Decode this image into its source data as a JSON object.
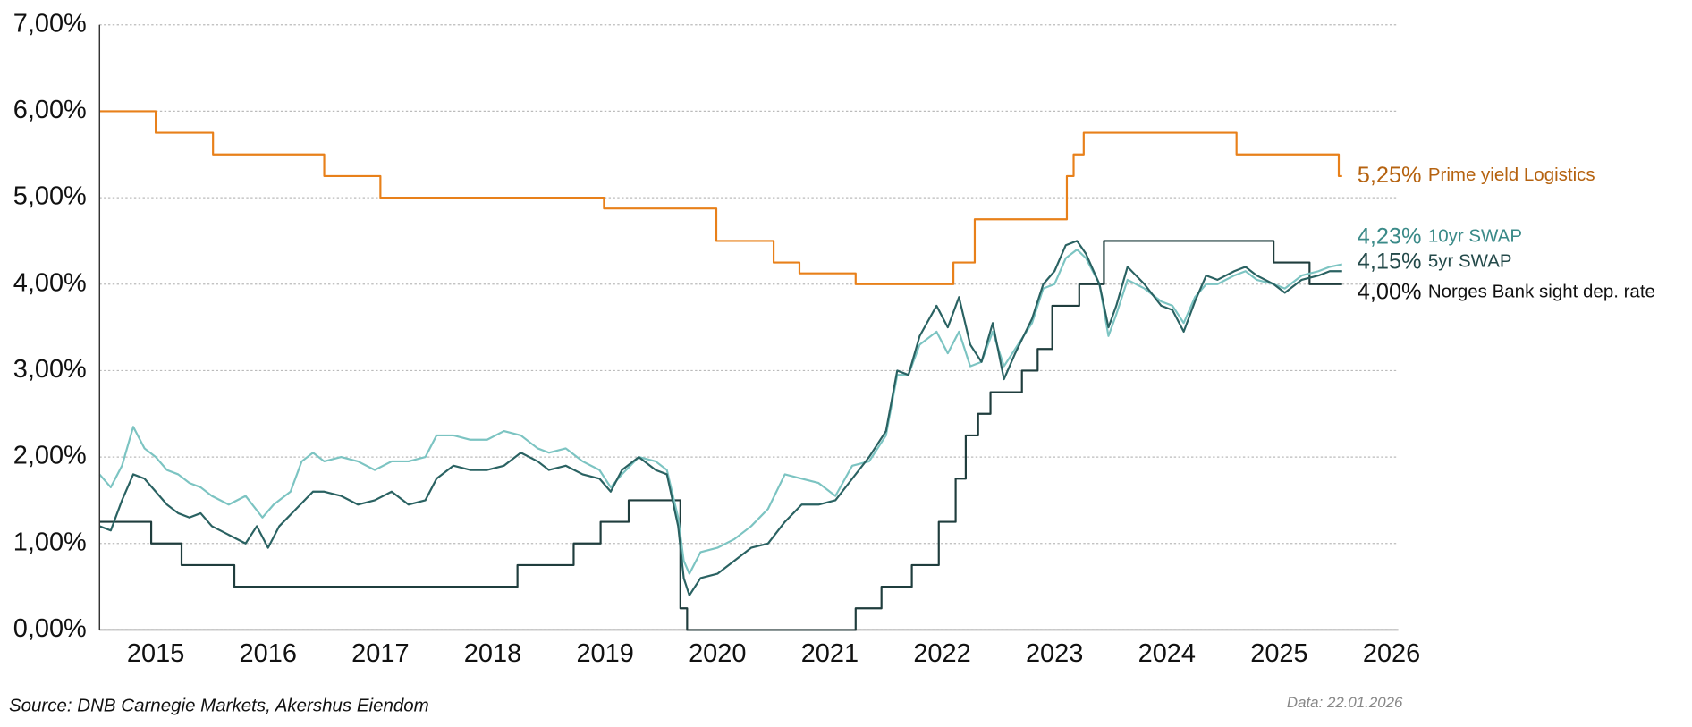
{
  "chart_data": {
    "type": "line",
    "source": "Source: DNB Carnegie Markets, Akershus Eiendom",
    "data_date": "Data: 22.01.2026",
    "xlim": [
      2015,
      2026.56
    ],
    "xticks": [
      {
        "value": 2015.5,
        "label": "2015"
      },
      {
        "value": 2016.5,
        "label": "2016"
      },
      {
        "value": 2017.5,
        "label": "2017"
      },
      {
        "value": 2018.5,
        "label": "2018"
      },
      {
        "value": 2019.5,
        "label": "2019"
      },
      {
        "value": 2020.5,
        "label": "2020"
      },
      {
        "value": 2021.5,
        "label": "2021"
      },
      {
        "value": 2022.5,
        "label": "2022"
      },
      {
        "value": 2023.5,
        "label": "2023"
      },
      {
        "value": 2024.5,
        "label": "2024"
      },
      {
        "value": 2025.5,
        "label": "2025"
      },
      {
        "value": 2026.5,
        "label": "2026"
      }
    ],
    "ylim": [
      0,
      7
    ],
    "yticks": [
      {
        "value": 0,
        "label": "0,00%"
      },
      {
        "value": 1,
        "label": "1,00%"
      },
      {
        "value": 2,
        "label": "2,00%"
      },
      {
        "value": 3,
        "label": "3,00%"
      },
      {
        "value": 4,
        "label": "4,00%"
      },
      {
        "value": 5,
        "label": "5,00%"
      },
      {
        "value": 6,
        "label": "6,00%"
      },
      {
        "value": 7,
        "label": "7,00%"
      }
    ],
    "grid": true,
    "series": [
      {
        "name": "Prime yield Logistics",
        "end_label": "5,25%",
        "color": "#e8801a",
        "label_color": "#b5620f",
        "x": [
          2015,
          2015.5,
          2015.5,
          2016.01,
          2016.01,
          2017.0,
          2017.0,
          2017.5,
          2017.5,
          2019.49,
          2019.49,
          2020.49,
          2020.49,
          2021.0,
          2021.0,
          2021.23,
          2021.23,
          2021.73,
          2021.73,
          2022.6,
          2022.6,
          2022.79,
          2022.79,
          2023.61,
          2023.61,
          2023.67,
          2023.67,
          2023.76,
          2023.76,
          2025.12,
          2025.12,
          2026.03,
          2026.03,
          2026.06
        ],
        "values": [
          6.0,
          6.0,
          5.75,
          5.75,
          5.5,
          5.5,
          5.25,
          5.25,
          5.0,
          5.0,
          4.875,
          4.875,
          4.5,
          4.5,
          4.25,
          4.25,
          4.125,
          4.125,
          4.0,
          4.0,
          4.25,
          4.25,
          4.75,
          4.75,
          5.25,
          5.25,
          5.5,
          5.5,
          5.75,
          5.75,
          5.5,
          5.5,
          5.25,
          5.25
        ]
      },
      {
        "name": "Norges Bank sight dep. rate",
        "end_label": "4,00%",
        "color": "#1f3d3d",
        "label_color": "#111111",
        "x": [
          2015,
          2015.46,
          2015.46,
          2015.73,
          2015.73,
          2016.2,
          2016.2,
          2018.72,
          2018.72,
          2019.22,
          2019.22,
          2019.46,
          2019.46,
          2019.71,
          2019.71,
          2020.17,
          2020.17,
          2020.23,
          2020.23,
          2021.73,
          2021.73,
          2021.96,
          2021.96,
          2022.23,
          2022.23,
          2022.47,
          2022.47,
          2022.62,
          2022.62,
          2022.71,
          2022.71,
          2022.82,
          2022.82,
          2022.93,
          2022.93,
          2023.21,
          2023.21,
          2023.35,
          2023.35,
          2023.48,
          2023.48,
          2023.72,
          2023.72,
          2023.94,
          2023.94,
          2025.45,
          2025.45,
          2025.77,
          2025.77,
          2026.06
        ],
        "values": [
          1.25,
          1.25,
          1.0,
          1.0,
          0.75,
          0.75,
          0.5,
          0.5,
          0.75,
          0.75,
          1.0,
          1.0,
          1.25,
          1.25,
          1.5,
          1.5,
          0.25,
          0.25,
          0,
          0,
          0.25,
          0.25,
          0.5,
          0.5,
          0.75,
          0.75,
          1.25,
          1.25,
          1.75,
          1.75,
          2.25,
          2.25,
          2.5,
          2.5,
          2.75,
          2.75,
          3.0,
          3.0,
          3.25,
          3.25,
          3.75,
          3.75,
          4.0,
          4.0,
          4.5,
          4.5,
          4.25,
          4.25,
          4.0,
          4.0
        ]
      },
      {
        "name": "10yr SWAP",
        "end_label": "4,23%",
        "color": "#7cc4c2",
        "label_color": "#3a8a88",
        "x": [
          2015.0,
          2015.1,
          2015.2,
          2015.3,
          2015.4,
          2015.5,
          2015.6,
          2015.7,
          2015.8,
          2015.9,
          2016.0,
          2016.15,
          2016.3,
          2016.45,
          2016.55,
          2016.7,
          2016.8,
          2016.9,
          2017.0,
          2017.15,
          2017.3,
          2017.45,
          2017.6,
          2017.75,
          2017.9,
          2018.0,
          2018.15,
          2018.3,
          2018.45,
          2018.6,
          2018.75,
          2018.9,
          2019.0,
          2019.15,
          2019.3,
          2019.45,
          2019.55,
          2019.65,
          2019.8,
          2019.95,
          2020.05,
          2020.15,
          2020.2,
          2020.25,
          2020.35,
          2020.5,
          2020.65,
          2020.8,
          2020.95,
          2021.1,
          2021.25,
          2021.4,
          2021.55,
          2021.7,
          2021.85,
          2022.0,
          2022.1,
          2022.2,
          2022.3,
          2022.45,
          2022.55,
          2022.65,
          2022.75,
          2022.85,
          2022.95,
          2023.05,
          2023.15,
          2023.3,
          2023.4,
          2023.5,
          2023.6,
          2023.7,
          2023.78,
          2023.9,
          2023.98,
          2024.05,
          2024.15,
          2024.3,
          2024.45,
          2024.55,
          2024.65,
          2024.75,
          2024.85,
          2024.95,
          2025.1,
          2025.2,
          2025.3,
          2025.45,
          2025.55,
          2025.7,
          2025.85,
          2025.95,
          2026.06
        ],
        "values": [
          1.8,
          1.65,
          1.9,
          2.35,
          2.1,
          2.0,
          1.85,
          1.8,
          1.7,
          1.65,
          1.55,
          1.45,
          1.55,
          1.3,
          1.45,
          1.6,
          1.95,
          2.05,
          1.95,
          2.0,
          1.95,
          1.85,
          1.95,
          1.95,
          2.0,
          2.25,
          2.25,
          2.2,
          2.2,
          2.3,
          2.25,
          2.1,
          2.05,
          2.1,
          1.95,
          1.85,
          1.65,
          1.8,
          2.0,
          1.95,
          1.85,
          1.3,
          0.8,
          0.65,
          0.9,
          0.95,
          1.05,
          1.2,
          1.4,
          1.8,
          1.75,
          1.7,
          1.55,
          1.9,
          1.95,
          2.25,
          2.95,
          2.95,
          3.3,
          3.45,
          3.2,
          3.45,
          3.05,
          3.1,
          3.45,
          3.05,
          3.25,
          3.55,
          3.95,
          4.0,
          4.3,
          4.4,
          4.3,
          4.0,
          3.4,
          3.65,
          4.05,
          3.95,
          3.8,
          3.75,
          3.55,
          3.85,
          4.0,
          4.0,
          4.1,
          4.15,
          4.05,
          4.0,
          3.95,
          4.1,
          4.15,
          4.2,
          4.23
        ]
      },
      {
        "name": "5yr SWAP",
        "end_label": "4,15%",
        "color": "#2a6262",
        "label_color": "#244a4a",
        "x": [
          2015.0,
          2015.1,
          2015.2,
          2015.3,
          2015.4,
          2015.5,
          2015.6,
          2015.7,
          2015.8,
          2015.9,
          2016.0,
          2016.15,
          2016.3,
          2016.4,
          2016.5,
          2016.6,
          2016.75,
          2016.9,
          2017.0,
          2017.15,
          2017.3,
          2017.45,
          2017.6,
          2017.75,
          2017.9,
          2018.0,
          2018.15,
          2018.3,
          2018.45,
          2018.6,
          2018.75,
          2018.9,
          2019.0,
          2019.15,
          2019.3,
          2019.45,
          2019.55,
          2019.65,
          2019.8,
          2019.95,
          2020.05,
          2020.15,
          2020.2,
          2020.25,
          2020.35,
          2020.5,
          2020.65,
          2020.8,
          2020.95,
          2021.1,
          2021.25,
          2021.4,
          2021.55,
          2021.7,
          2021.85,
          2022.0,
          2022.1,
          2022.2,
          2022.3,
          2022.45,
          2022.55,
          2022.65,
          2022.75,
          2022.85,
          2022.95,
          2023.05,
          2023.15,
          2023.3,
          2023.4,
          2023.5,
          2023.6,
          2023.7,
          2023.78,
          2023.9,
          2023.98,
          2024.05,
          2024.15,
          2024.3,
          2024.45,
          2024.55,
          2024.65,
          2024.75,
          2024.85,
          2024.95,
          2025.1,
          2025.2,
          2025.3,
          2025.45,
          2025.55,
          2025.7,
          2025.85,
          2025.95,
          2026.06
        ],
        "values": [
          1.2,
          1.15,
          1.5,
          1.8,
          1.75,
          1.6,
          1.45,
          1.35,
          1.3,
          1.35,
          1.2,
          1.1,
          1.0,
          1.2,
          0.95,
          1.2,
          1.4,
          1.6,
          1.6,
          1.55,
          1.45,
          1.5,
          1.6,
          1.45,
          1.5,
          1.75,
          1.9,
          1.85,
          1.85,
          1.9,
          2.05,
          1.95,
          1.85,
          1.9,
          1.8,
          1.75,
          1.6,
          1.85,
          2.0,
          1.85,
          1.8,
          1.2,
          0.6,
          0.4,
          0.6,
          0.65,
          0.8,
          0.95,
          1.0,
          1.25,
          1.45,
          1.45,
          1.5,
          1.75,
          2.0,
          2.3,
          3.0,
          2.95,
          3.4,
          3.75,
          3.5,
          3.85,
          3.3,
          3.1,
          3.55,
          2.9,
          3.2,
          3.6,
          4.0,
          4.15,
          4.45,
          4.5,
          4.35,
          4.0,
          3.5,
          3.75,
          4.2,
          4.0,
          3.75,
          3.7,
          3.45,
          3.8,
          4.1,
          4.05,
          4.15,
          4.2,
          4.1,
          4.0,
          3.9,
          4.05,
          4.1,
          4.15,
          4.15
        ]
      }
    ]
  }
}
